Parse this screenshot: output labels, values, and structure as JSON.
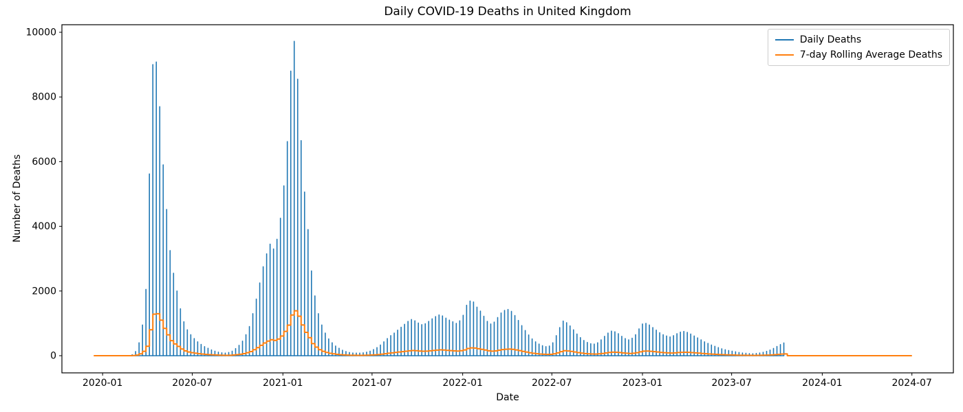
{
  "figure": {
    "title": "Daily COVID-19 Deaths in United Kingdom",
    "x_axis": {
      "label": "Date",
      "tick_labels": [
        "2020-01",
        "2020-07",
        "2021-01",
        "2021-07",
        "2022-01",
        "2022-07",
        "2023-01",
        "2023-07",
        "2024-01",
        "2024-07"
      ]
    },
    "y_axis": {
      "label": "Number of Deaths",
      "tick_labels": [
        "0",
        "2000",
        "4000",
        "6000",
        "8000",
        "10000"
      ]
    },
    "legend": {
      "position": "upper right",
      "entries": [
        {
          "label": "Daily Deaths",
          "color": "#1f77b4"
        },
        {
          "label": "7-day Rolling Average Deaths",
          "color": "#ff7f0e"
        }
      ]
    },
    "background_color": "#ffffff",
    "spine_color": "#000000"
  },
  "chart_data": {
    "type": "line",
    "title": "Daily COVID-19 Deaths in United Kingdom",
    "xlabel": "Date",
    "ylabel": "Number of Deaths",
    "grid": false,
    "legend_position": "upper right",
    "y_ticks": [
      0,
      2000,
      4000,
      6000,
      8000,
      10000
    ],
    "ylim": [
      -530,
      10230
    ],
    "x_tick_dates": [
      "2020-01-01",
      "2020-07-01",
      "2021-01-01",
      "2021-07-01",
      "2022-01-01",
      "2022-07-01",
      "2023-01-01",
      "2023-07-01",
      "2024-01-01",
      "2024-07-01"
    ],
    "x_start_date": "2019-12-15",
    "x_step_days": 7,
    "description": "Daily deaths are zero on most days with one large weekly reporting-day spike; the orange curve is the 7-day rolling average (weekly spike value / 7). Daily-deaths series ends 2023-10-15; rolling-average line continues at 0 until 2024-06-30.",
    "series": [
      {
        "name": "Daily Deaths",
        "color": "#1f77b4",
        "last_index_drawn": 200,
        "weekly_values": [
          0,
          0,
          0,
          0,
          0,
          0,
          0,
          0,
          0,
          0,
          5,
          30,
          130,
          400,
          950,
          2050,
          5620,
          9000,
          9080,
          7700,
          5900,
          4520,
          3250,
          2550,
          2000,
          1450,
          1050,
          800,
          650,
          530,
          430,
          350,
          280,
          230,
          180,
          140,
          110,
          90,
          80,
          100,
          140,
          220,
          320,
          450,
          650,
          900,
          1300,
          1750,
          2250,
          2750,
          3150,
          3450,
          3300,
          3600,
          4250,
          5250,
          6620,
          8800,
          9720,
          8550,
          6650,
          5060,
          3900,
          2620,
          1850,
          1300,
          950,
          700,
          520,
          400,
          300,
          230,
          170,
          130,
          100,
          85,
          80,
          80,
          90,
          110,
          140,
          190,
          250,
          330,
          430,
          530,
          620,
          700,
          790,
          880,
          970,
          1060,
          1120,
          1080,
          1010,
          960,
          990,
          1060,
          1140,
          1210,
          1260,
          1230,
          1160,
          1100,
          1050,
          1000,
          1080,
          1250,
          1560,
          1690,
          1660,
          1500,
          1380,
          1220,
          1060,
          980,
          1040,
          1180,
          1320,
          1400,
          1430,
          1370,
          1240,
          1090,
          930,
          780,
          640,
          520,
          430,
          360,
          310,
          280,
          300,
          400,
          620,
          870,
          1070,
          1020,
          920,
          800,
          670,
          560,
          470,
          410,
          370,
          360,
          400,
          490,
          600,
          700,
          760,
          740,
          680,
          600,
          530,
          490,
          540,
          650,
          830,
          980,
          1000,
          950,
          870,
          790,
          710,
          650,
          610,
          580,
          620,
          680,
          730,
          750,
          720,
          670,
          610,
          550,
          490,
          430,
          380,
          330,
          290,
          250,
          215,
          185,
          160,
          140,
          120,
          100,
          85,
          75,
          65,
          60,
          70,
          85,
          105,
          135,
          175,
          225,
          285,
          345,
          395,
          0,
          0,
          0,
          0,
          0,
          0,
          0,
          0,
          0,
          0,
          0,
          0,
          0,
          0,
          0,
          0,
          0,
          0,
          0,
          0,
          0,
          0,
          0,
          0,
          0,
          0,
          0,
          0,
          0,
          0,
          0,
          0,
          0,
          0,
          0,
          0,
          0
        ]
      },
      {
        "name": "7-day Rolling Average Deaths",
        "color": "#ff7f0e",
        "derivation": "weekly_values / 7, drawn as daily steps",
        "last_index_drawn": 237
      }
    ]
  }
}
